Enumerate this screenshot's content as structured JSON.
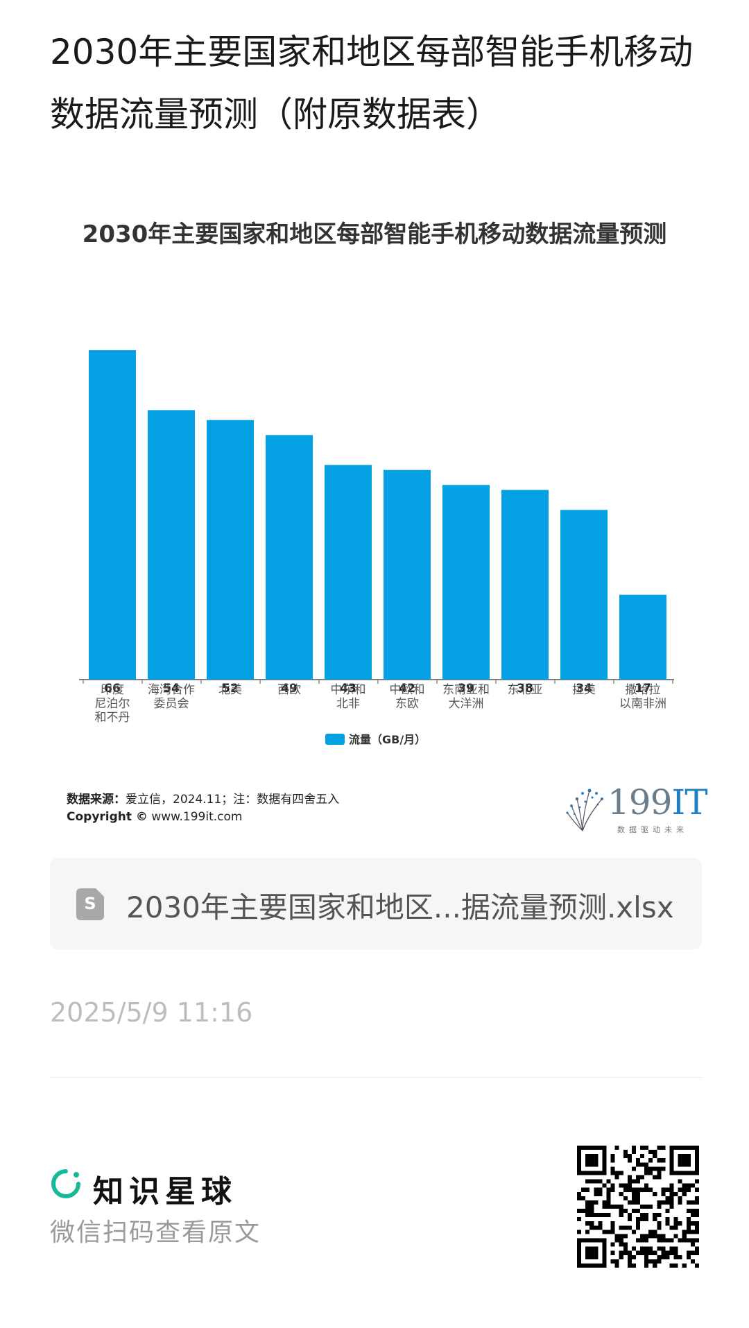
{
  "post": {
    "title": "2030年主要国家和地区每部智能手机移动数据流量预测（附原数据表）"
  },
  "chart_meta": {
    "source_label": "数据来源：",
    "source_text": "爱立信，2024.11；注：数据有四舍五入",
    "copyright_label": "Copyright ©",
    "copyright_text": "www.199it.com",
    "logo_text_num": "199",
    "logo_text_it": "IT",
    "logo_tagline": "数据驱动未来",
    "bar_color": "#04a0e4"
  },
  "chart_data": {
    "type": "bar",
    "title": "2030年主要国家和地区每部智能手机移动数据流量预测",
    "categories": [
      [
        "印度",
        "尼泊尔",
        "和不丹"
      ],
      [
        "海湾合作",
        "委员会"
      ],
      [
        "北美"
      ],
      [
        "西欧"
      ],
      [
        "中东和",
        "北非"
      ],
      [
        "中欧和",
        "东欧"
      ],
      [
        "东南亚和",
        "大洋洲"
      ],
      [
        "东北亚"
      ],
      [
        "拉美"
      ],
      [
        "撒哈拉",
        "以南非洲"
      ]
    ],
    "series": [
      {
        "name": "流量（GB/月）",
        "values": [
          66,
          54,
          52,
          49,
          43,
          42,
          39,
          38,
          34,
          17
        ]
      }
    ],
    "ylim": [
      0,
      66
    ],
    "grid": false,
    "legend_position": "bottom"
  },
  "attachment": {
    "icon": "spreadsheet-file-icon",
    "file_name": "2030年主要国家和地区...据流量预测.xlsx"
  },
  "timestamp": "2025/5/9 11:16",
  "footer": {
    "brand_name": "知识星球",
    "scan_hint": "微信扫码查看原文",
    "brand_color": "#16b998"
  }
}
